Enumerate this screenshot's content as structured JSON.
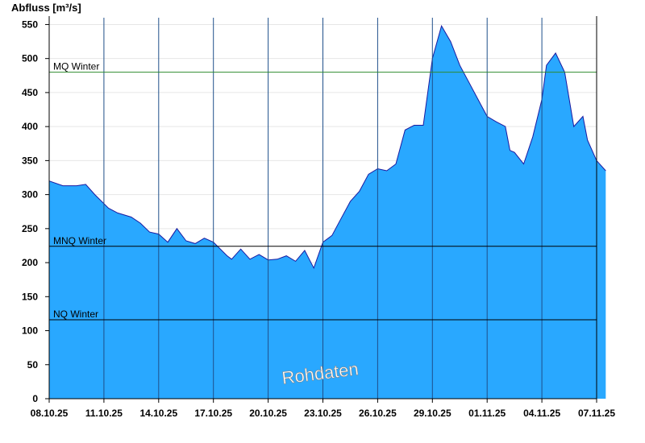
{
  "chart_data": {
    "type": "area",
    "title": "",
    "ylabel": "Abfluss [m³/s]",
    "xlabel": "",
    "ylim": [
      0,
      560
    ],
    "yticks": [
      0,
      50,
      100,
      150,
      200,
      250,
      300,
      350,
      400,
      450,
      500,
      550
    ],
    "xlim": [
      "2025-10-08",
      "2025-11-07"
    ],
    "xtick_labels": [
      "08.10.25",
      "11.10.25",
      "14.10.25",
      "17.10.25",
      "20.10.25",
      "23.10.25",
      "26.10.25",
      "29.10.25",
      "01.11.25",
      "04.11.25",
      "07.11.25"
    ],
    "grid": true,
    "fill_color": "#29a8ff",
    "line_color": "#1a1aa0",
    "series": [
      {
        "x": [
          "2025-10-08T00:00",
          "2025-10-08T18:00",
          "2025-10-09T12:00",
          "2025-10-10T00:00",
          "2025-10-10T12:00",
          "2025-10-11T06:00",
          "2025-10-11T18:00",
          "2025-10-12T12:00",
          "2025-10-13T00:00",
          "2025-10-13T12:00",
          "2025-10-14T00:00",
          "2025-10-14T12:00",
          "2025-10-15T00:00",
          "2025-10-15T12:00",
          "2025-10-16T00:00",
          "2025-10-16T12:00",
          "2025-10-17T00:00",
          "2025-10-17T18:00",
          "2025-10-18T00:00",
          "2025-10-18T12:00",
          "2025-10-19T00:00",
          "2025-10-19T12:00",
          "2025-10-20T00:00",
          "2025-10-20T12:00",
          "2025-10-21T00:00",
          "2025-10-21T12:00",
          "2025-10-22T00:00",
          "2025-10-22T12:00",
          "2025-10-23T00:00",
          "2025-10-23T12:00",
          "2025-10-24T00:00",
          "2025-10-24T12:00",
          "2025-10-25T00:00",
          "2025-10-25T12:00",
          "2025-10-26T00:00",
          "2025-10-26T12:00",
          "2025-10-27T00:00",
          "2025-10-27T12:00",
          "2025-10-28T00:00",
          "2025-10-28T12:00",
          "2025-10-29T00:00",
          "2025-10-29T12:00",
          "2025-10-30T00:00",
          "2025-10-30T12:00",
          "2025-10-31T00:00",
          "2025-10-31T12:00",
          "2025-11-01T00:00",
          "2025-11-01T12:00",
          "2025-11-02T00:00",
          "2025-11-02T06:00",
          "2025-11-02T12:00",
          "2025-11-03T00:00",
          "2025-11-03T12:00",
          "2025-11-04T00:00",
          "2025-11-04T06:00",
          "2025-11-04T18:00",
          "2025-11-05T06:00",
          "2025-11-05T18:00",
          "2025-11-06T06:00",
          "2025-11-06T12:00",
          "2025-11-07T00:00",
          "2025-11-07T12:00"
        ],
        "values": [
          320,
          313,
          313,
          315,
          300,
          280,
          273,
          267,
          258,
          245,
          242,
          230,
          250,
          232,
          228,
          236,
          230,
          210,
          205,
          220,
          205,
          212,
          204,
          205,
          210,
          202,
          218,
          192,
          230,
          240,
          265,
          290,
          305,
          330,
          338,
          335,
          345,
          395,
          402,
          402,
          500,
          548,
          525,
          490,
          465,
          440,
          415,
          407,
          400,
          365,
          362,
          345,
          385,
          440,
          490,
          508,
          480,
          400,
          415,
          380,
          350,
          335
        ]
      }
    ],
    "reference_lines": [
      {
        "label": "MQ Winter",
        "value": 480,
        "color": "#2e8b2e"
      },
      {
        "label": "MNQ Winter",
        "value": 224,
        "color": "#000000"
      },
      {
        "label": "NQ Winter",
        "value": 116,
        "color": "#000000"
      }
    ],
    "annotation": "Rohdaten"
  }
}
